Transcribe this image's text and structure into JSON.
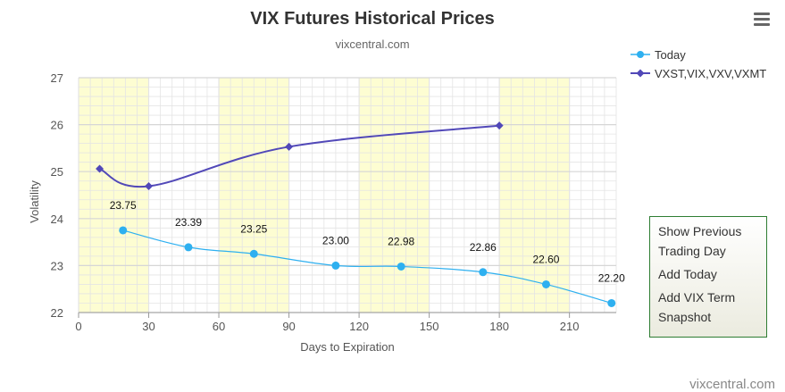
{
  "chart_data": {
    "type": "line",
    "title": "VIX Futures Historical Prices",
    "subtitle": "vixcentral.com",
    "xlabel": "Days to Expiration",
    "ylabel": "Volatility",
    "xlim": [
      0,
      230
    ],
    "ylim": [
      22,
      27
    ],
    "xticks": [
      "0",
      "30",
      "60",
      "90",
      "120",
      "150",
      "180",
      "210"
    ],
    "yticks": [
      "22",
      "23",
      "24",
      "25",
      "26",
      "27"
    ],
    "grid": true,
    "legend_position": "top-right",
    "shaded_bands": [
      [
        0,
        30
      ],
      [
        60,
        90
      ],
      [
        120,
        150
      ],
      [
        180,
        210
      ]
    ],
    "series": [
      {
        "name": "Today",
        "color": "#2eb0f0",
        "marker": "circle",
        "x": [
          19,
          47,
          75,
          110,
          138,
          173,
          200,
          228
        ],
        "y": [
          23.75,
          23.39,
          23.25,
          23.0,
          22.98,
          22.86,
          22.6,
          22.2
        ],
        "labels": [
          "23.75",
          "23.39",
          "23.25",
          "23.00",
          "22.98",
          "22.86",
          "22.60",
          "22.20"
        ]
      },
      {
        "name": "VXST,VIX,VXV,VXMT",
        "color": "#5148b8",
        "marker": "diamond",
        "x": [
          9,
          30,
          90,
          180
        ],
        "y": [
          25.06,
          24.69,
          25.53,
          25.98
        ]
      }
    ],
    "credit": "vixcentral.com"
  },
  "menu": {
    "icon": "hamburger-menu-icon"
  },
  "panel": {
    "buttons": [
      {
        "label": "Show Previous Trading Day"
      },
      {
        "label": "Add Today"
      },
      {
        "label": "Add VIX Term Snapshot"
      }
    ]
  }
}
